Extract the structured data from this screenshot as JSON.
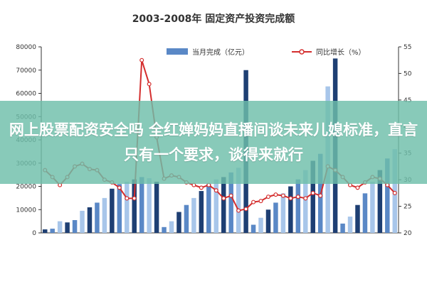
{
  "chart_data": {
    "type": "bar",
    "title": "2003-2008年 固定资产投资完成额",
    "legend": {
      "bar_label": "当月完成（亿元）",
      "line_label": "同比增长（%）",
      "placement": "top"
    },
    "y_left": {
      "ticks": [
        0,
        10000,
        20000,
        30000,
        40000,
        50000,
        60000,
        70000,
        80000
      ],
      "ylim": [
        0,
        80000
      ]
    },
    "y_right": {
      "ticks": [
        20,
        25,
        30,
        35,
        40,
        45,
        50,
        55
      ],
      "ylim": [
        20,
        55
      ]
    },
    "grid": false,
    "bars": [
      1500,
      1800,
      5000,
      4500,
      5500,
      9500,
      11000,
      13000,
      15000,
      19000,
      21000,
      22000,
      23000,
      24000,
      23500,
      22000,
      2500,
      5000,
      9000,
      12000,
      15000,
      18000,
      21000,
      23000,
      24000,
      26000,
      28000,
      70000,
      3500,
      6500,
      10000,
      13000,
      17000,
      20000,
      23000,
      27000,
      31000,
      34000,
      63000,
      75000,
      4000,
      7000,
      12000,
      17000,
      22000,
      27000,
      32000,
      36000
    ],
    "bar_colors": [
      "#1e3f73",
      "#5a88c6",
      "#a8c6ea"
    ],
    "line": [
      31.8,
      30.5,
      29.0,
      30.5,
      32.5,
      33.0,
      32.0,
      31.8,
      30.0,
      29.5,
      28.5,
      26.5,
      26.5,
      52.5,
      48.0,
      38.0,
      30.2,
      30.8,
      30.5,
      29.5,
      29.0,
      28.5,
      29.0,
      28.0,
      26.5,
      27.0,
      24.2,
      24.5,
      25.8,
      26.0,
      26.8,
      27.2,
      27.0,
      26.5,
      26.8,
      26.5,
      27.5,
      27.0,
      32.5,
      31.8,
      30.5,
      29.0,
      28.5,
      29.5,
      30.5,
      30.2,
      29.0,
      27.5
    ],
    "line_color": "#d42d2d"
  },
  "overlay": {
    "text": "网上股票配资安全吗 全红婵妈妈直播间谈未来儿媳标准，直言只有一个要求，谈得来就行"
  }
}
